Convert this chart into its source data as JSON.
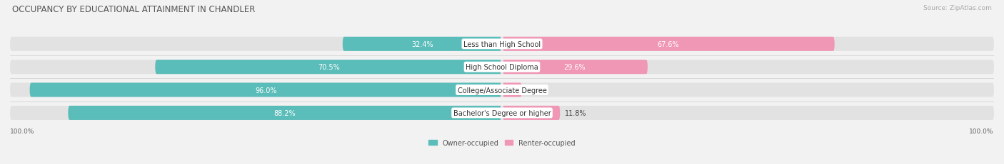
{
  "title": "OCCUPANCY BY EDUCATIONAL ATTAINMENT IN CHANDLER",
  "source": "Source: ZipAtlas.com",
  "categories": [
    "Less than High School",
    "High School Diploma",
    "College/Associate Degree",
    "Bachelor's Degree or higher"
  ],
  "owner_pct": [
    32.4,
    70.5,
    96.0,
    88.2
  ],
  "renter_pct": [
    67.6,
    29.6,
    4.0,
    11.8
  ],
  "owner_color": "#5bbdb9",
  "renter_color": "#f097b5",
  "bg_color": "#f2f2f2",
  "bar_bg_color": "#e2e2e2",
  "title_fontsize": 8.5,
  "label_fontsize": 7.0,
  "source_fontsize": 6.5,
  "bar_height": 0.62,
  "figsize": [
    14.06,
    2.32
  ],
  "dpi": 100,
  "owner_label_color_threshold": 15,
  "renter_label_color_threshold": 15
}
